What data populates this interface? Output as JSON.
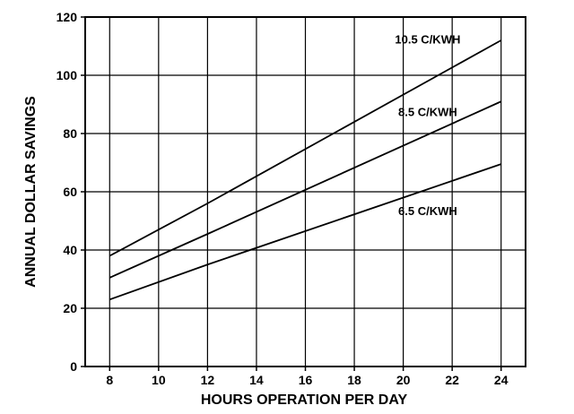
{
  "chart_data": {
    "type": "line",
    "title": "",
    "xlabel": "HOURS OPERATION PER DAY",
    "ylabel": "ANNUAL DOLLAR SAVINGS",
    "xlim": [
      7,
      25
    ],
    "ylim": [
      0,
      120
    ],
    "x_ticks": [
      8,
      10,
      12,
      14,
      16,
      18,
      20,
      22,
      24
    ],
    "y_ticks": [
      0,
      20,
      40,
      60,
      80,
      100,
      120
    ],
    "grid": true,
    "x": [
      8,
      12,
      24
    ],
    "series": [
      {
        "name": "10.5 C/KWH",
        "values": [
          38,
          56,
          112
        ]
      },
      {
        "name": "8.5 C/KWH",
        "values": [
          30.5,
          45.5,
          91
        ]
      },
      {
        "name": "6.5 C/KWH",
        "values": [
          23,
          35,
          69.5
        ]
      }
    ],
    "legend": "inline labels"
  }
}
